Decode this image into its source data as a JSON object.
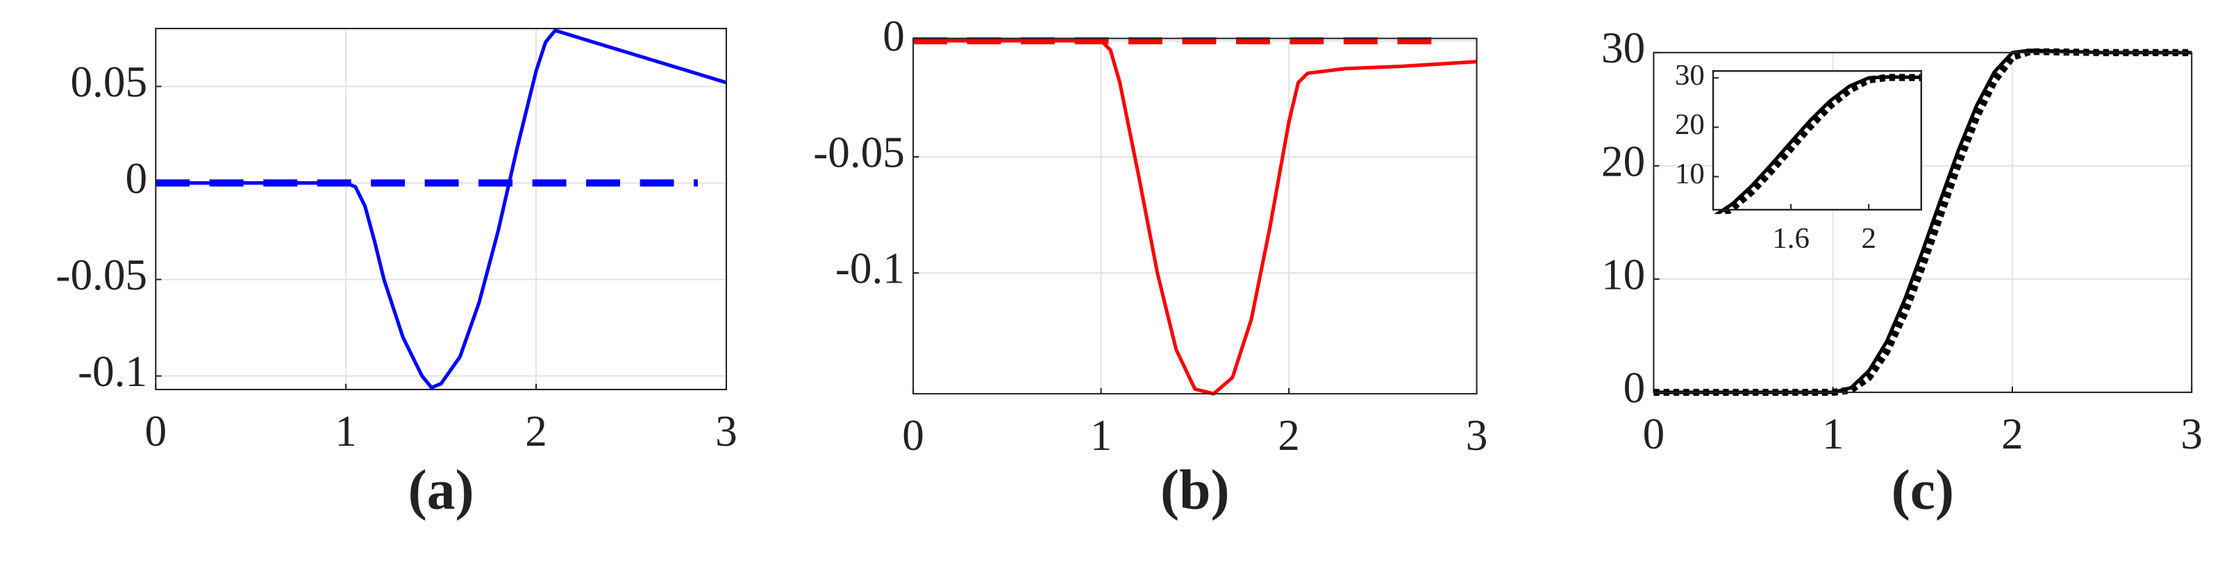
{
  "chart_data": [
    {
      "type": "line",
      "caption": "(a)",
      "xlim": [
        0,
        3
      ],
      "ylim": [
        -0.107,
        0.08
      ],
      "xticks": [
        0,
        1,
        2,
        3
      ],
      "yticks": [
        -0.1,
        -0.05,
        0,
        0.05
      ],
      "grid": true,
      "series": [
        {
          "color": "#0000ff",
          "style": "solid",
          "x": [
            0,
            0.5,
            1.0,
            1.05,
            1.1,
            1.15,
            1.2,
            1.3,
            1.4,
            1.45,
            1.5,
            1.6,
            1.7,
            1.8,
            1.9,
            2.0,
            2.05,
            2.1,
            2.2,
            2.4,
            2.6,
            2.8,
            3.0
          ],
          "values": [
            0,
            0,
            0,
            -0.002,
            -0.012,
            -0.03,
            -0.05,
            -0.08,
            -0.1,
            -0.106,
            -0.104,
            -0.09,
            -0.062,
            -0.025,
            0.018,
            0.058,
            0.073,
            0.079,
            0.076,
            0.07,
            0.064,
            0.058,
            0.052
          ]
        },
        {
          "color": "#0000ff",
          "style": "dashed",
          "x": [
            0,
            2.85
          ],
          "values": [
            0,
            0
          ]
        }
      ]
    },
    {
      "type": "line",
      "caption": "(b)",
      "xlim": [
        0,
        3
      ],
      "ylim": [
        -0.152,
        0.001
      ],
      "xticks": [
        0,
        1,
        2,
        3
      ],
      "yticks": [
        -0.1,
        -0.05,
        0
      ],
      "grid": true,
      "series": [
        {
          "color": "#ff0000",
          "style": "solid",
          "x": [
            0,
            0.5,
            1.0,
            1.05,
            1.1,
            1.2,
            1.3,
            1.4,
            1.5,
            1.6,
            1.7,
            1.8,
            1.9,
            2.0,
            2.05,
            2.1,
            2.3,
            2.6,
            3.0
          ],
          "values": [
            0,
            0,
            0,
            -0.004,
            -0.018,
            -0.058,
            -0.1,
            -0.133,
            -0.15,
            -0.152,
            -0.145,
            -0.12,
            -0.08,
            -0.035,
            -0.018,
            -0.014,
            -0.012,
            -0.011,
            -0.009
          ]
        },
        {
          "color": "#ff0000",
          "style": "dashed",
          "x": [
            0,
            2.86
          ],
          "values": [
            0,
            0
          ]
        }
      ]
    },
    {
      "type": "line",
      "caption": "(c)",
      "xlim": [
        0,
        3
      ],
      "ylim": [
        0,
        30
      ],
      "xticks": [
        0,
        1,
        2,
        3
      ],
      "yticks": [
        0,
        10,
        20,
        30
      ],
      "grid": true,
      "series": [
        {
          "color": "#000000",
          "style": "solid",
          "x": [
            0,
            0.5,
            1.0,
            1.1,
            1.2,
            1.3,
            1.4,
            1.5,
            1.6,
            1.7,
            1.8,
            1.9,
            2.0,
            2.1,
            2.5,
            3.0
          ],
          "values": [
            0,
            0,
            0,
            0.4,
            1.9,
            4.5,
            8.2,
            12.5,
            17,
            21.4,
            25.3,
            28.3,
            30,
            30.2,
            30,
            30
          ]
        },
        {
          "color": "#000000",
          "style": "dotted",
          "x": [
            0,
            0.5,
            1.0,
            1.1,
            1.2,
            1.3,
            1.4,
            1.5,
            1.6,
            1.7,
            1.8,
            1.9,
            2.0,
            2.1,
            2.5,
            3.0
          ],
          "values": [
            0,
            0,
            0,
            0.2,
            1.3,
            3.6,
            7,
            11.2,
            15.7,
            20.2,
            24.3,
            27.5,
            29.6,
            30.1,
            30,
            30
          ]
        }
      ],
      "inset": {
        "xlim": [
          1.2,
          2.27
        ],
        "ylim": [
          3.3,
          31.4
        ],
        "xticks": [
          1.6,
          2
        ],
        "yticks": [
          10,
          20,
          30
        ]
      }
    }
  ]
}
